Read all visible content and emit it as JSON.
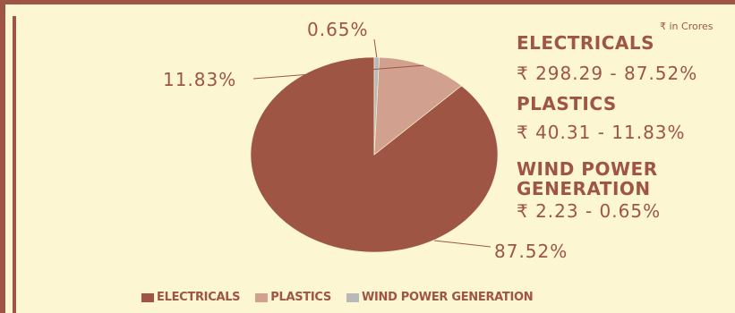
{
  "chart_data": {
    "type": "pie",
    "unit_note": "₹ in Crores",
    "slices": [
      {
        "name": "ELECTRICALS",
        "percent": 87.52,
        "percent_label": "87.52%",
        "value_label": "₹ 298.29 - 87.52%",
        "color": "#9e5543"
      },
      {
        "name": "PLASTICS",
        "percent": 11.83,
        "percent_label": "11.83%",
        "value_label": "₹ 40.31 - 11.83%",
        "color": "#d2a08e"
      },
      {
        "name": "WIND POWER GENERATION",
        "percent": 0.65,
        "percent_label": "0.65%",
        "value_label": "₹ 2.23 - 0.65%",
        "color": "#b9b9b9"
      }
    ],
    "info_names": [
      "ELECTRICALS",
      "PLASTICS",
      "WIND POWER\nGENERATION"
    ],
    "legend": [
      "ELECTRICALS",
      "PLASTICS",
      "WIND POWER GENERATION"
    ],
    "legend_position": "bottom"
  }
}
